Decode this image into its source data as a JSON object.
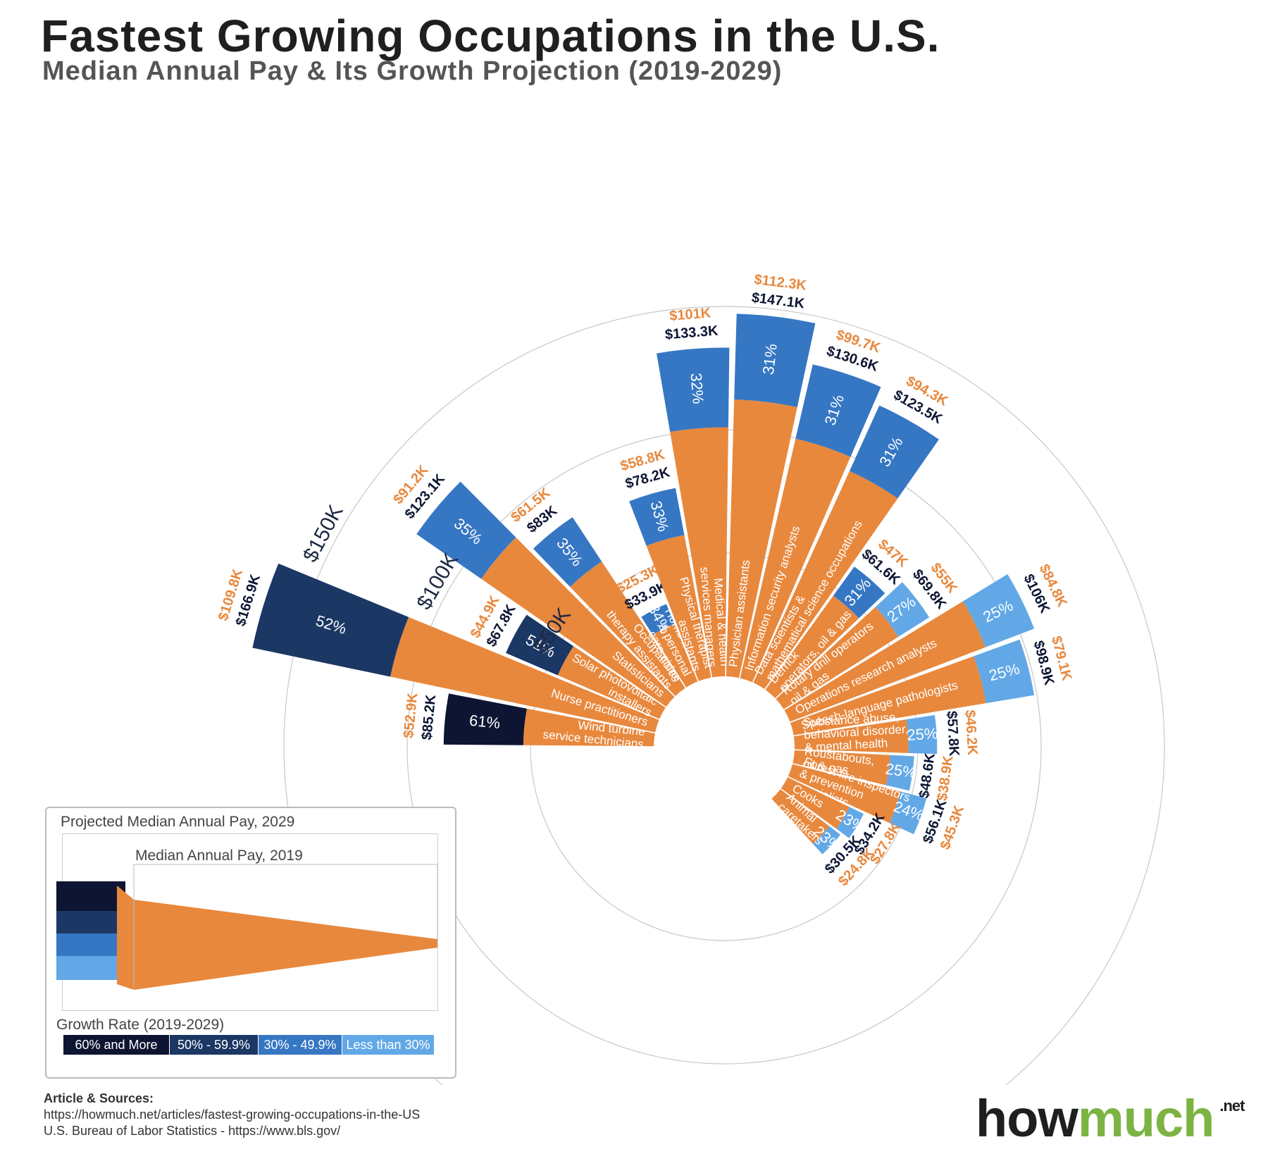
{
  "title": "Fastest Growing Occupations in the U.S.",
  "subtitle": "Median Annual Pay & Its Growth Projection (2019-2029)",
  "colors": {
    "orange": "#e8883d",
    "band_60_plus": "#0d1533",
    "band_50_59": "#1b3764",
    "band_30_49": "#3677c4",
    "band_lt30": "#62a8e6",
    "salary2029_text": "#0d1533",
    "salary2019_text": "#e8883d"
  },
  "chart_data": {
    "type": "radial-bar",
    "title": "Fastest Growing Occupations in the U.S.",
    "subtitle": "Median Annual Pay & Its Growth Projection (2019-2029)",
    "value_unit": "thousand USD",
    "radial_axis": {
      "ticks": [
        {
          "value": 50,
          "label": "$50K"
        },
        {
          "value": 100,
          "label": "$100K"
        },
        {
          "value": 150,
          "label": "$150K"
        }
      ]
    },
    "series": [
      "Median Annual Pay, 2019",
      "Projected Median Annual Pay, 2029",
      "Growth Rate (2019-2029)"
    ],
    "occupations": [
      {
        "name": "Wind turbine service technicians",
        "lines": [
          "Wind turbine",
          "service technicians"
        ],
        "pay2019": 52.9,
        "pay2029": 85.2,
        "growth": 61,
        "pay2019_label": "$52.9K",
        "pay2029_label": "$85.2K",
        "growth_label": "61%",
        "icon": "wind-turbine-icon"
      },
      {
        "name": "Nurse practitioners",
        "lines": [
          "Nurse practitioners"
        ],
        "pay2019": 109.8,
        "pay2029": 166.9,
        "growth": 52,
        "pay2019_label": "$109.8K",
        "pay2029_label": "$166.9K",
        "growth_label": "52%",
        "icon": "nurse-icon"
      },
      {
        "name": "Solar photovoltaic installers",
        "lines": [
          "Solar photovoltaic",
          "installers"
        ],
        "pay2019": 44.9,
        "pay2029": 67.8,
        "growth": 51,
        "pay2019_label": "$44.9K",
        "pay2029_label": "$67.8K",
        "growth_label": "51%",
        "icon": "solar-panel-icon"
      },
      {
        "name": "Statisticians",
        "lines": [
          "Statisticians"
        ],
        "pay2019": 91.2,
        "pay2029": 123.1,
        "growth": 35,
        "pay2019_label": "$91.2K",
        "pay2029_label": "$123.1K",
        "growth_label": "35%",
        "icon": "chart-icon"
      },
      {
        "name": "Occupational therapy assistants",
        "lines": [
          "Occupational",
          "therapy assistants"
        ],
        "pay2019": 61.5,
        "pay2029": 83,
        "growth": 35,
        "pay2019_label": "$61.5K",
        "pay2029_label": "$83K",
        "growth_label": "35%",
        "icon": "health-worker-icon"
      },
      {
        "name": "Home health & personal care aides",
        "lines": [
          "Home health",
          "& personal",
          "care aides"
        ],
        "pay2019": 25.3,
        "pay2029": 33.9,
        "growth": 34,
        "pay2019_label": "$25.3K",
        "pay2029_label": "$33.9K",
        "growth_label": "34%",
        "icon": "care-hand-icon"
      },
      {
        "name": "Physical therapist assistants",
        "lines": [
          "Physical therapist",
          "assistants"
        ],
        "pay2019": 58.8,
        "pay2029": 78.2,
        "growth": 33,
        "pay2019_label": "$58.8K",
        "pay2029_label": "$78.2K",
        "growth_label": "33%",
        "icon": "therapist-icon"
      },
      {
        "name": "Medical & health services managers",
        "lines": [
          "Medical & health",
          "services managers"
        ],
        "pay2019": 101,
        "pay2029": 133.3,
        "growth": 32,
        "pay2019_label": "$101K",
        "pay2029_label": "$133.3K",
        "growth_label": "32%",
        "icon": "medical-manager-icon"
      },
      {
        "name": "Physician assistants",
        "lines": [
          "Physician assistants"
        ],
        "pay2019": 112.3,
        "pay2029": 147.1,
        "growth": 31,
        "pay2019_label": "$112.3K",
        "pay2029_label": "$147.1K",
        "growth_label": "31%",
        "icon": "physician-icon"
      },
      {
        "name": "Information security analysts",
        "lines": [
          "Information security analysts"
        ],
        "pay2019": 99.7,
        "pay2029": 130.6,
        "growth": 31,
        "pay2019_label": "$99.7K",
        "pay2029_label": "$130.6K",
        "growth_label": "31%",
        "icon": "security-monitor-icon"
      },
      {
        "name": "Data scientists & mathematical science occupations",
        "lines": [
          "Data scientists &",
          "mathematical science occupations"
        ],
        "pay2019": 94.3,
        "pay2029": 123.5,
        "growth": 31,
        "pay2019_label": "$94.3K",
        "pay2029_label": "$123.5K",
        "growth_label": "31%",
        "icon": "math-teacher-icon"
      },
      {
        "name": "Derrick operators, oil & gas",
        "lines": [
          "Derrick",
          "operators, oil & gas"
        ],
        "pay2019": 47,
        "pay2029": 61.6,
        "growth": 31,
        "pay2019_label": "$47K",
        "pay2029_label": "$61.6K",
        "growth_label": "31%",
        "icon": "derrick-icon"
      },
      {
        "name": "Rotary drill operators oil & gas",
        "lines": [
          "Rotary drill operators",
          "oil & gas"
        ],
        "pay2019": 55,
        "pay2029": 69.8,
        "growth": 27,
        "pay2019_label": "$55K",
        "pay2029_label": "$69.8K",
        "growth_label": "27%",
        "icon": "drill-rig-icon"
      },
      {
        "name": "Operations research analysts",
        "lines": [
          "Operations research analysts"
        ],
        "pay2019": 84.8,
        "pay2029": 106,
        "growth": 25,
        "pay2019_label": "$84.8K",
        "pay2029_label": "$106K",
        "growth_label": "25%",
        "icon": "analytics-monitor-icon"
      },
      {
        "name": "Speech-language pathologists",
        "lines": [
          "Speech-language pathologists"
        ],
        "pay2019": 79.1,
        "pay2029": 98.9,
        "growth": 25,
        "pay2019_label": "$79.1K",
        "pay2029_label": "$98.9K",
        "growth_label": "25%",
        "icon": "speech-head-icon"
      },
      {
        "name": "Substance abuse, behavioral disorder, & mental health counselors",
        "lines": [
          "Substance abuse,",
          "behavioral disorder,",
          "& mental health",
          "counselors"
        ],
        "pay2019": 46.2,
        "pay2029": 57.8,
        "growth": 25,
        "pay2019_label": "$46.2K",
        "pay2029_label": "$57.8K",
        "growth_label": "25%",
        "icon": "mental-health-icon"
      },
      {
        "name": "Roustabouts, oil & gas",
        "lines": [
          "Roustabouts,",
          "oil & gas"
        ],
        "pay2019": 38.9,
        "pay2029": 48.6,
        "growth": 25,
        "pay2019_label": "$38.9K",
        "pay2029_label": "$48.6K",
        "growth_label": "25%",
        "icon": "roustabout-icon"
      },
      {
        "name": "Forest fire inspectors & prevention specialists",
        "lines": [
          "Forest fire inspectors",
          "& prevention",
          "specialists"
        ],
        "pay2019": 45.3,
        "pay2029": 56.1,
        "growth": 24,
        "pay2019_label": "$45.3K",
        "pay2029_label": "$56.1K",
        "growth_label": "24%",
        "icon": "forest-fire-icon"
      },
      {
        "name": "Cooks",
        "lines": [
          "Cooks"
        ],
        "pay2019": 27.8,
        "pay2029": 34.2,
        "growth": 23,
        "pay2019_label": "$27.8K",
        "pay2029_label": "$34.2K",
        "growth_label": "23%",
        "icon": "cook-icon"
      },
      {
        "name": "Animal caretakers",
        "lines": [
          "Animal",
          "caretakers"
        ],
        "pay2019": 24.8,
        "pay2029": 30.5,
        "growth": 23,
        "pay2019_label": "$24.8K",
        "pay2029_label": "$30.5K",
        "growth_label": "23%",
        "icon": "paw-icon"
      }
    ]
  },
  "legend": {
    "projected_label": "Projected Median Annual Pay, 2029",
    "median_label": "Median Annual Pay, 2019",
    "growth_title": "Growth Rate (2019-2029)",
    "bands": [
      {
        "label": "60% and More",
        "color": "#0d1533"
      },
      {
        "label": "50% - 59.9%",
        "color": "#1b3764"
      },
      {
        "label": "30% - 49.9%",
        "color": "#3677c4"
      },
      {
        "label": "Less than 30%",
        "color": "#62a8e6"
      }
    ]
  },
  "sources": {
    "heading": "Article & Sources:",
    "line1": "https://howmuch.net/articles/fastest-growing-occupations-in-the-US",
    "line2": "U.S. Bureau of Labor Statistics - https://www.bls.gov/"
  },
  "logo": {
    "how": "how",
    "much": "much",
    "net": ".net"
  }
}
